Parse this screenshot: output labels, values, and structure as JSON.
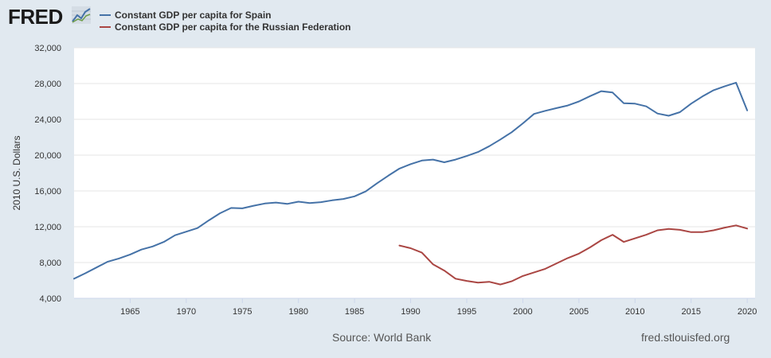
{
  "header": {
    "logo_text": "FRED",
    "logo_icon": "trend-line-graph-icon"
  },
  "footer": {
    "source": "Source: World Bank",
    "url": "fred.stlouisfed.org"
  },
  "colors": {
    "background": "#e1e9f0",
    "plot_background": "#ffffff",
    "spain": "#4572a7",
    "russia": "#aa4643"
  },
  "chart_data": {
    "type": "line",
    "title": "",
    "xlabel": "",
    "ylabel": "2010 U.S. Dollars",
    "xlim": [
      1960,
      2020.7
    ],
    "ylim": [
      4000,
      32000
    ],
    "y_ticks": [
      4000,
      8000,
      12000,
      16000,
      20000,
      24000,
      28000,
      32000
    ],
    "y_tick_labels": [
      "4,000",
      "8,000",
      "12,000",
      "16,000",
      "20,000",
      "24,000",
      "28,000",
      "32,000"
    ],
    "x_ticks": [
      1965,
      1970,
      1975,
      1980,
      1985,
      1990,
      1995,
      2000,
      2005,
      2010,
      2015,
      2020
    ],
    "x_tick_labels": [
      "1965",
      "1970",
      "1975",
      "1980",
      "1985",
      "1990",
      "1995",
      "2000",
      "2005",
      "2010",
      "2015",
      "2020"
    ],
    "grid": "horizontal",
    "legend_position": "top-left",
    "series": [
      {
        "name": "Constant GDP per capita for Spain",
        "x": [
          1960,
          1961,
          1962,
          1963,
          1964,
          1965,
          1966,
          1967,
          1968,
          1969,
          1970,
          1971,
          1972,
          1973,
          1974,
          1975,
          1976,
          1977,
          1978,
          1979,
          1980,
          1981,
          1982,
          1983,
          1984,
          1985,
          1986,
          1987,
          1988,
          1989,
          1990,
          1991,
          1992,
          1993,
          1994,
          1995,
          1996,
          1997,
          1998,
          1999,
          2000,
          2001,
          2002,
          2003,
          2004,
          2005,
          2006,
          2007,
          2008,
          2009,
          2010,
          2011,
          2012,
          2013,
          2014,
          2015,
          2016,
          2017,
          2018,
          2019,
          2020
        ],
        "y": [
          6200,
          6800,
          7450,
          8100,
          8450,
          8900,
          9450,
          9800,
          10300,
          11050,
          11450,
          11850,
          12700,
          13500,
          14100,
          14050,
          14350,
          14600,
          14700,
          14550,
          14800,
          14650,
          14750,
          14950,
          15100,
          15400,
          15950,
          16850,
          17700,
          18500,
          19000,
          19400,
          19500,
          19200,
          19500,
          19900,
          20350,
          21000,
          21750,
          22550,
          23550,
          24600,
          24950,
          25250,
          25550,
          26000,
          26600,
          27150,
          27000,
          25800,
          25750,
          25450,
          24650,
          24400,
          24800,
          25750,
          26550,
          27250,
          27700,
          28100,
          25000
        ]
      },
      {
        "name": "Constant GDP per capita for the Russian Federation",
        "x": [
          1989,
          1990,
          1991,
          1992,
          1993,
          1994,
          1995,
          1996,
          1997,
          1998,
          1999,
          2000,
          2001,
          2002,
          2003,
          2004,
          2005,
          2006,
          2007,
          2008,
          2009,
          2010,
          2011,
          2012,
          2013,
          2014,
          2015,
          2016,
          2017,
          2018,
          2019,
          2020
        ],
        "y": [
          9900,
          9600,
          9100,
          7800,
          7100,
          6200,
          5950,
          5750,
          5850,
          5550,
          5900,
          6500,
          6900,
          7300,
          7900,
          8500,
          9000,
          9700,
          10500,
          11100,
          10300,
          10700,
          11100,
          11600,
          11750,
          11650,
          11400,
          11400,
          11600,
          11900,
          12150,
          11800
        ]
      }
    ]
  }
}
